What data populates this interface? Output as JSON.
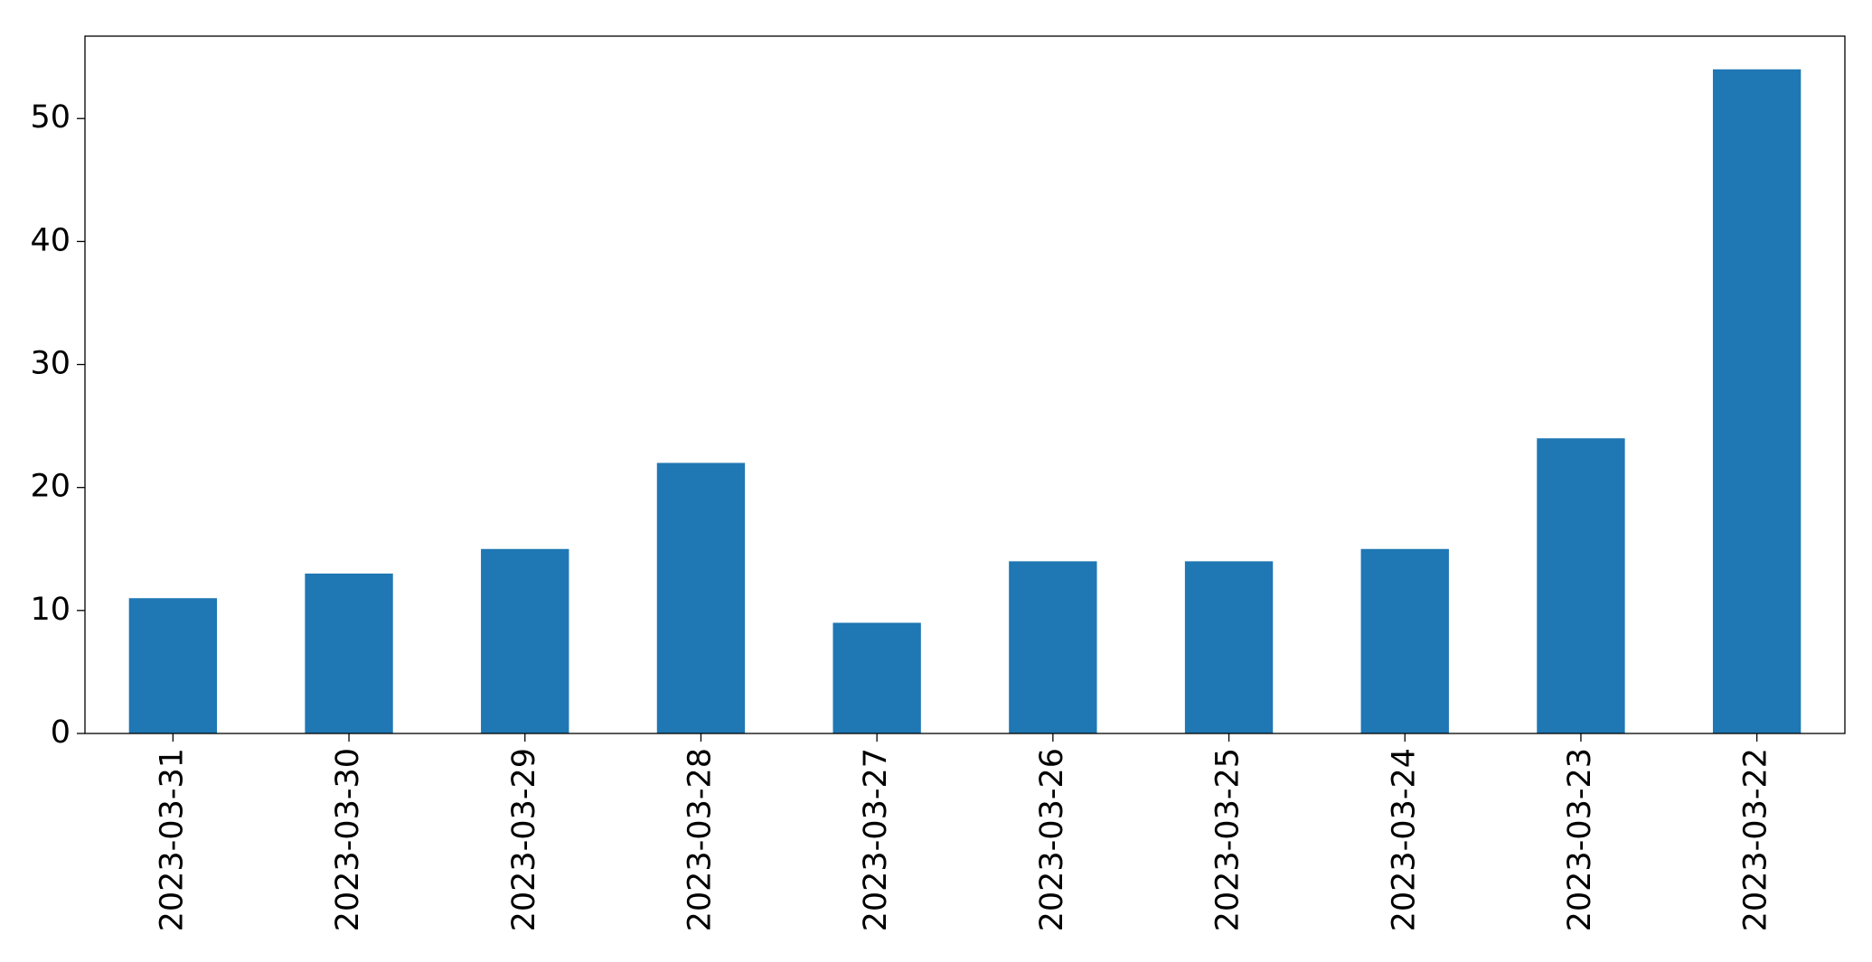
{
  "chart_data": {
    "type": "bar",
    "categories": [
      "2023-03-31",
      "2023-03-30",
      "2023-03-29",
      "2023-03-28",
      "2023-03-27",
      "2023-03-26",
      "2023-03-25",
      "2023-03-24",
      "2023-03-23",
      "2023-03-22"
    ],
    "values": [
      11,
      13,
      15,
      22,
      9,
      14,
      14,
      15,
      24,
      54
    ],
    "color": "#1f77b4",
    "ylim": [
      0,
      56.7
    ],
    "yticks": [
      0,
      10,
      20,
      30,
      40,
      50
    ],
    "grid": false
  }
}
